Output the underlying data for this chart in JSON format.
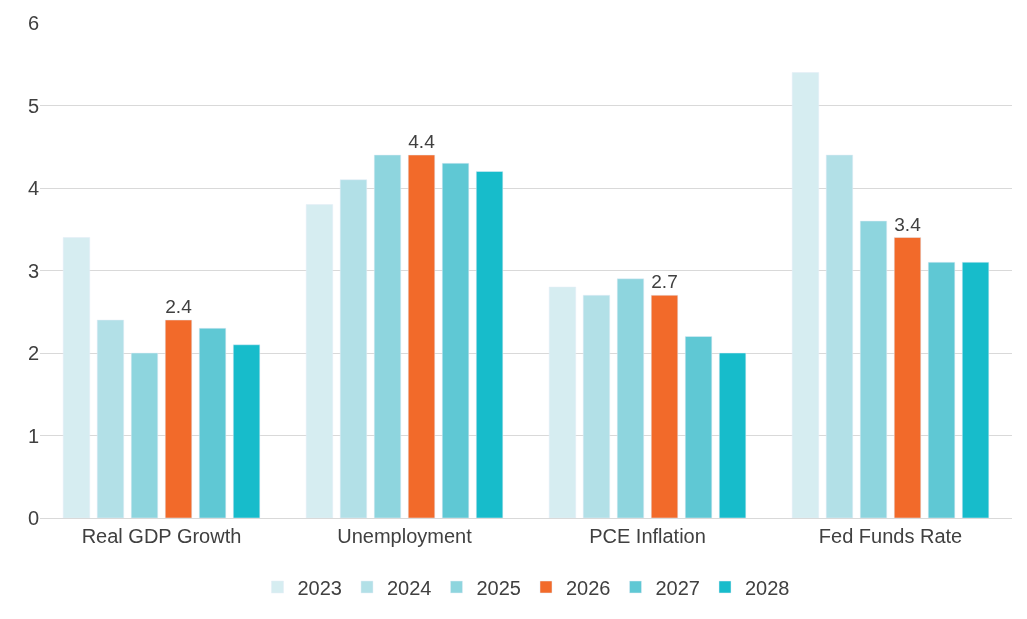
{
  "chart_data": {
    "type": "bar",
    "categories": [
      "Real GDP Growth",
      "Unemployment",
      "PCE Inflation",
      "Fed Funds Rate"
    ],
    "series": [
      {
        "name": "2023",
        "color": "#d6edf1",
        "values": [
          3.4,
          3.8,
          2.8,
          5.4
        ]
      },
      {
        "name": "2024",
        "color": "#b2e0e7",
        "values": [
          2.4,
          4.1,
          2.7,
          4.4
        ]
      },
      {
        "name": "2025",
        "color": "#8ed5de",
        "values": [
          2.0,
          4.4,
          2.9,
          3.6
        ]
      },
      {
        "name": "2026",
        "color": "#f26a2a",
        "values": [
          2.4,
          4.4,
          2.7,
          3.4
        ],
        "value_labels": [
          "2.4",
          "4.4",
          "2.7",
          "3.4"
        ]
      },
      {
        "name": "2027",
        "color": "#5fc8d4",
        "values": [
          2.3,
          4.3,
          2.2,
          3.1
        ]
      },
      {
        "name": "2028",
        "color": "#17bccb",
        "values": [
          2.1,
          4.2,
          2.0,
          3.1
        ]
      }
    ],
    "ylim": [
      0,
      6
    ],
    "yticks": [
      0,
      1,
      2,
      3,
      4,
      5,
      6
    ],
    "grid": "y",
    "legend": "bottom"
  }
}
